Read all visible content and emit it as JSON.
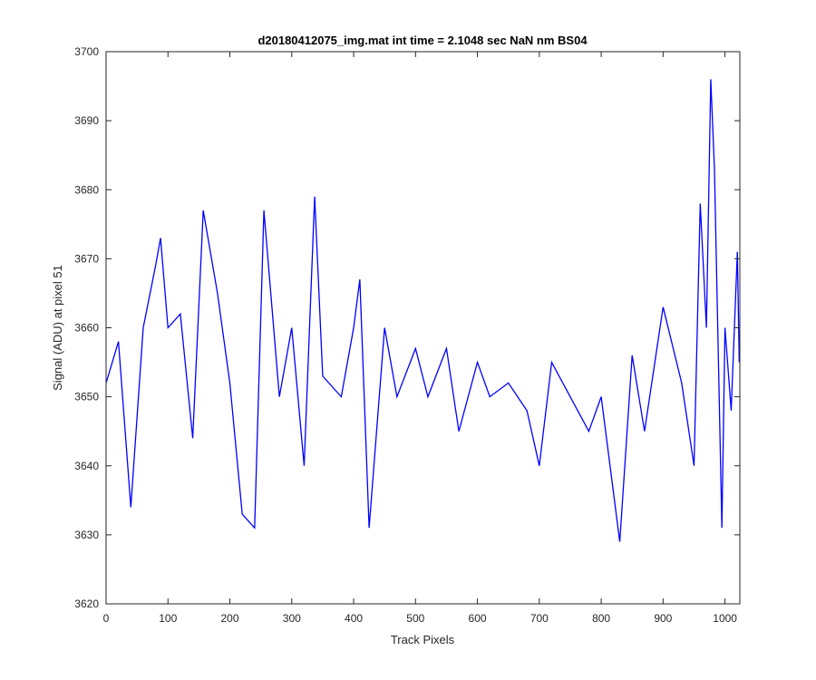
{
  "chart_data": {
    "type": "line",
    "title": "d20180412075_img.mat int time = 2.1048 sec  NaN nm BS04",
    "xlabel": "Track Pixels",
    "ylabel": "Signal (ADU) at pixel 51",
    "xlim": [
      0,
      1024
    ],
    "ylim": [
      3620,
      3700
    ],
    "xticks": [
      0,
      100,
      200,
      300,
      400,
      500,
      600,
      700,
      800,
      900,
      1000
    ],
    "yticks": [
      3620,
      3630,
      3640,
      3650,
      3660,
      3670,
      3680,
      3690,
      3700
    ],
    "grid": false,
    "legend": "none",
    "series": [
      {
        "color": "#0000ff",
        "x": [
          0,
          20,
          40,
          60,
          80,
          88,
          100,
          120,
          140,
          157,
          180,
          200,
          220,
          240,
          255,
          280,
          300,
          320,
          337,
          350,
          380,
          400,
          410,
          425,
          450,
          470,
          500,
          520,
          550,
          570,
          600,
          620,
          650,
          680,
          700,
          720,
          750,
          780,
          800,
          830,
          850,
          870,
          900,
          930,
          950,
          960,
          970,
          977,
          983,
          995,
          1000,
          1010,
          1020,
          1023
        ],
        "values": [
          3652,
          3658,
          3634,
          3660,
          3669,
          3673,
          3660,
          3662,
          3644,
          3677,
          3665,
          3652,
          3633,
          3631,
          3677,
          3650,
          3660,
          3640,
          3679,
          3653,
          3650,
          3660,
          3667,
          3631,
          3660,
          3650,
          3657,
          3650,
          3657,
          3645,
          3655,
          3650,
          3652,
          3648,
          3640,
          3655,
          3650,
          3645,
          3650,
          3629,
          3656,
          3645,
          3663,
          3652,
          3640,
          3678,
          3660,
          3696,
          3683,
          3631,
          3660,
          3648,
          3671,
          3655
        ]
      }
    ]
  }
}
